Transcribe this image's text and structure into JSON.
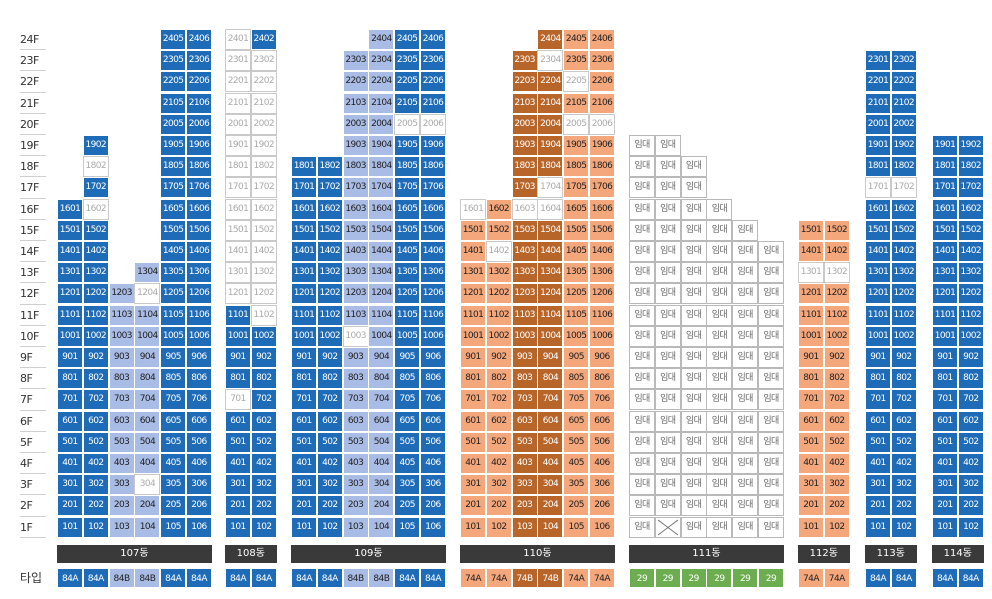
{
  "colors": {
    "blue": "#1e6bb8",
    "light_blue": "#a9bce6",
    "orange": "#f5a77c",
    "brown": "#b8652a",
    "white": "#ffffff",
    "green": "#6cad4f",
    "dark_bar": "#3a3a3a"
  },
  "floor_labels": [
    "24F",
    "23F",
    "22F",
    "21F",
    "20F",
    "19F",
    "18F",
    "17F",
    "16F",
    "15F",
    "14F",
    "13F",
    "12F",
    "11F",
    "10F",
    "9F",
    "8F",
    "7F",
    "6F",
    "5F",
    "4F",
    "3F",
    "2F",
    "1F"
  ],
  "type_row_label": "타입",
  "rental_text": "임대",
  "legend_note": "b=84A/74A(청색/주황), l=84B, d=74B, w=비분양(흰색), r=임대, g=29, x=비어있음",
  "buildings": [
    {
      "name": "107동",
      "columns": [
        {
          "top": 16,
          "types": "b",
          "type_label": "84A",
          "type_color": "b",
          "override": {
            "16": "b"
          }
        },
        {
          "top": 19,
          "types": "b",
          "type_label": "84A",
          "type_color": "b",
          "override": {
            "16": "w",
            "18": "w"
          }
        },
        {
          "top": 12,
          "types": "l",
          "type_label": "84B",
          "type_color": "l",
          "override": {}
        },
        {
          "top": 13,
          "types": "l",
          "type_label": "84B",
          "type_color": "l",
          "override": {
            "12": "w",
            "3": "w"
          }
        },
        {
          "top": 24,
          "types": "b",
          "type_label": "84A",
          "type_color": "b",
          "override": {}
        },
        {
          "top": 24,
          "types": "b",
          "type_label": "84A",
          "type_color": "b",
          "override": {}
        }
      ]
    },
    {
      "name": "108동",
      "columns": [
        {
          "top": 24,
          "types": "b",
          "type_label": "84A",
          "type_color": "b",
          "override": {
            "24": "w",
            "23": "w",
            "22": "w",
            "21": "w",
            "20": "w",
            "19": "w",
            "18": "w",
            "17": "w",
            "16": "w",
            "15": "w",
            "14": "w",
            "13": "w",
            "12": "w",
            "7": "w"
          }
        },
        {
          "top": 24,
          "types": "b",
          "type_label": "84A",
          "type_color": "b",
          "override": {
            "23": "w",
            "22": "w",
            "21": "w",
            "20": "w",
            "19": "w",
            "18": "w",
            "17": "w",
            "16": "w",
            "15": "w",
            "14": "w",
            "13": "w",
            "12": "w",
            "11": "w"
          }
        }
      ]
    },
    {
      "name": "109동",
      "columns": [
        {
          "top": 18,
          "types": "b",
          "type_label": "84A",
          "type_color": "b",
          "override": {}
        },
        {
          "top": 18,
          "types": "b",
          "type_label": "84A",
          "type_color": "b",
          "override": {}
        },
        {
          "top": 23,
          "types": "l",
          "type_label": "84B",
          "type_color": "l",
          "override": {
            "10": "w"
          }
        },
        {
          "top": 24,
          "types": "l",
          "type_label": "84B",
          "type_color": "l",
          "override": {}
        },
        {
          "top": 24,
          "types": "b",
          "type_label": "84A",
          "type_color": "b",
          "override": {
            "20": "w"
          }
        },
        {
          "top": 24,
          "types": "b",
          "type_label": "84A",
          "type_color": "b",
          "override": {
            "20": "w"
          }
        }
      ]
    },
    {
      "name": "110동",
      "columns": [
        {
          "top": 16,
          "types": "o",
          "type_label": "74A",
          "type_color": "o",
          "override": {
            "16": "w"
          }
        },
        {
          "top": 16,
          "types": "o",
          "type_label": "74A",
          "type_color": "o",
          "override": {
            "14": "w"
          }
        },
        {
          "top": 23,
          "types": "d",
          "type_label": "74B",
          "type_color": "d",
          "override": {
            "16": "w"
          }
        },
        {
          "top": 24,
          "types": "d",
          "type_label": "74B",
          "type_color": "d",
          "override": {
            "23": "w",
            "17": "w",
            "16": "w"
          }
        },
        {
          "top": 24,
          "types": "o",
          "type_label": "74A",
          "type_color": "o",
          "override": {
            "22": "w",
            "20": "w"
          }
        },
        {
          "top": 24,
          "types": "o",
          "type_label": "74A",
          "type_color": "o",
          "override": {
            "20": "w"
          }
        }
      ]
    },
    {
      "name": "111동",
      "rental": true,
      "columns": [
        {
          "top": 19,
          "types": "r",
          "type_label": "29",
          "type_color": "g",
          "override": {}
        },
        {
          "top": 19,
          "types": "r",
          "type_label": "29",
          "type_color": "g",
          "override": {
            "1": "x"
          }
        },
        {
          "top": 18,
          "types": "r",
          "type_label": "29",
          "type_color": "g",
          "override": {}
        },
        {
          "top": 16,
          "types": "r",
          "type_label": "29",
          "type_color": "g",
          "override": {}
        },
        {
          "top": 15,
          "types": "r",
          "type_label": "29",
          "type_color": "g",
          "override": {}
        },
        {
          "top": 14,
          "types": "r",
          "type_label": "29",
          "type_color": "g",
          "override": {}
        }
      ]
    },
    {
      "name": "112동",
      "columns": [
        {
          "top": 15,
          "types": "o",
          "type_label": "74A",
          "type_color": "o",
          "override": {
            "13": "w"
          }
        },
        {
          "top": 15,
          "types": "o",
          "type_label": "74A",
          "type_color": "o",
          "override": {
            "13": "w"
          }
        }
      ]
    },
    {
      "name": "113동",
      "columns": [
        {
          "top": 23,
          "types": "b",
          "type_label": "84A",
          "type_color": "b",
          "override": {
            "17": "w"
          }
        },
        {
          "top": 23,
          "types": "b",
          "type_label": "84A",
          "type_color": "b",
          "override": {
            "17": "w"
          }
        }
      ]
    },
    {
      "name": "114동",
      "columns": [
        {
          "top": 19,
          "types": "b",
          "type_label": "84A",
          "type_color": "b",
          "override": {}
        },
        {
          "top": 19,
          "types": "b",
          "type_label": "84A",
          "type_color": "b",
          "override": {}
        }
      ]
    }
  ]
}
